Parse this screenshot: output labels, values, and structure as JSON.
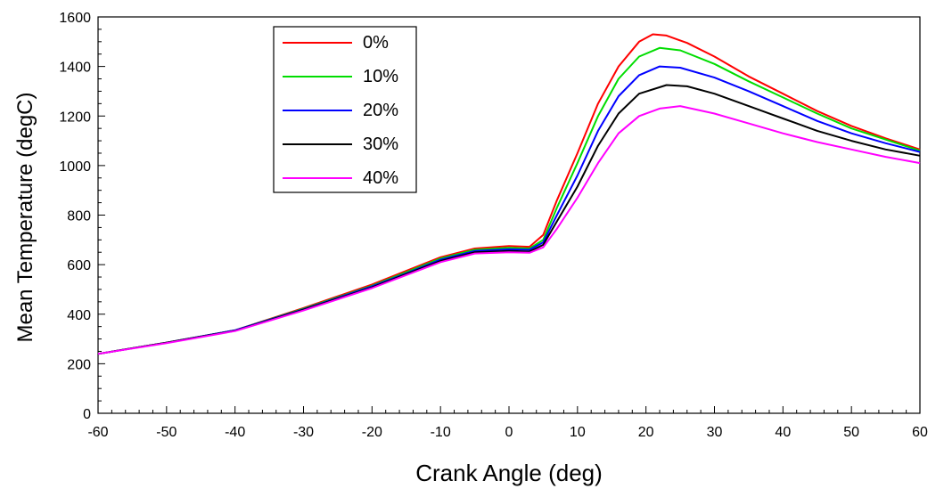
{
  "chart_data": {
    "type": "line",
    "title": "",
    "xlabel": "Crank Angle (deg)",
    "ylabel": "Mean Temperature (degC)",
    "xlim": [
      -60,
      60
    ],
    "ylim": [
      0,
      1600
    ],
    "xticks": [
      -60,
      -50,
      -40,
      -30,
      -20,
      -10,
      0,
      10,
      20,
      30,
      40,
      50,
      60
    ],
    "yticks": [
      0,
      200,
      400,
      600,
      800,
      1000,
      1200,
      1400,
      1600
    ],
    "grid": false,
    "legend_position": "top-left",
    "series": [
      {
        "name": "0%",
        "color": "#ff0000",
        "points": [
          [
            -60,
            240
          ],
          [
            -50,
            285
          ],
          [
            -40,
            335
          ],
          [
            -30,
            425
          ],
          [
            -20,
            520
          ],
          [
            -15,
            575
          ],
          [
            -10,
            630
          ],
          [
            -5,
            665
          ],
          [
            0,
            675
          ],
          [
            3,
            672
          ],
          [
            5,
            720
          ],
          [
            7,
            860
          ],
          [
            10,
            1050
          ],
          [
            13,
            1250
          ],
          [
            16,
            1400
          ],
          [
            19,
            1500
          ],
          [
            21,
            1530
          ],
          [
            23,
            1525
          ],
          [
            26,
            1495
          ],
          [
            30,
            1440
          ],
          [
            35,
            1360
          ],
          [
            40,
            1290
          ],
          [
            45,
            1220
          ],
          [
            50,
            1160
          ],
          [
            55,
            1110
          ],
          [
            60,
            1065
          ]
        ]
      },
      {
        "name": "10%",
        "color": "#00dd00",
        "points": [
          [
            -60,
            240
          ],
          [
            -50,
            285
          ],
          [
            -40,
            335
          ],
          [
            -30,
            422
          ],
          [
            -20,
            515
          ],
          [
            -15,
            570
          ],
          [
            -10,
            625
          ],
          [
            -5,
            660
          ],
          [
            0,
            668
          ],
          [
            3,
            665
          ],
          [
            5,
            700
          ],
          [
            7,
            830
          ],
          [
            10,
            1010
          ],
          [
            13,
            1200
          ],
          [
            16,
            1350
          ],
          [
            19,
            1440
          ],
          [
            22,
            1475
          ],
          [
            25,
            1465
          ],
          [
            30,
            1410
          ],
          [
            35,
            1340
          ],
          [
            40,
            1275
          ],
          [
            45,
            1210
          ],
          [
            50,
            1150
          ],
          [
            55,
            1105
          ],
          [
            60,
            1060
          ]
        ]
      },
      {
        "name": "20%",
        "color": "#0000ff",
        "points": [
          [
            -60,
            240
          ],
          [
            -50,
            285
          ],
          [
            -40,
            335
          ],
          [
            -30,
            420
          ],
          [
            -20,
            512
          ],
          [
            -15,
            565
          ],
          [
            -10,
            620
          ],
          [
            -5,
            655
          ],
          [
            0,
            662
          ],
          [
            3,
            660
          ],
          [
            5,
            690
          ],
          [
            7,
            800
          ],
          [
            10,
            960
          ],
          [
            13,
            1140
          ],
          [
            16,
            1280
          ],
          [
            19,
            1365
          ],
          [
            22,
            1400
          ],
          [
            25,
            1395
          ],
          [
            30,
            1355
          ],
          [
            35,
            1300
          ],
          [
            40,
            1240
          ],
          [
            45,
            1180
          ],
          [
            50,
            1130
          ],
          [
            55,
            1090
          ],
          [
            60,
            1055
          ]
        ]
      },
      {
        "name": "30%",
        "color": "#000000",
        "points": [
          [
            -60,
            240
          ],
          [
            -50,
            285
          ],
          [
            -40,
            333
          ],
          [
            -30,
            418
          ],
          [
            -20,
            508
          ],
          [
            -15,
            562
          ],
          [
            -10,
            615
          ],
          [
            -5,
            650
          ],
          [
            0,
            655
          ],
          [
            3,
            653
          ],
          [
            5,
            680
          ],
          [
            7,
            775
          ],
          [
            10,
            915
          ],
          [
            13,
            1080
          ],
          [
            16,
            1210
          ],
          [
            19,
            1290
          ],
          [
            23,
            1325
          ],
          [
            26,
            1320
          ],
          [
            30,
            1290
          ],
          [
            35,
            1240
          ],
          [
            40,
            1190
          ],
          [
            45,
            1140
          ],
          [
            50,
            1100
          ],
          [
            55,
            1065
          ],
          [
            60,
            1040
          ]
        ]
      },
      {
        "name": "40%",
        "color": "#ff00ff",
        "points": [
          [
            -60,
            240
          ],
          [
            -50,
            283
          ],
          [
            -40,
            332
          ],
          [
            -30,
            415
          ],
          [
            -20,
            505
          ],
          [
            -15,
            558
          ],
          [
            -10,
            610
          ],
          [
            -5,
            645
          ],
          [
            0,
            650
          ],
          [
            3,
            648
          ],
          [
            5,
            670
          ],
          [
            7,
            745
          ],
          [
            10,
            870
          ],
          [
            13,
            1010
          ],
          [
            16,
            1130
          ],
          [
            19,
            1200
          ],
          [
            22,
            1230
          ],
          [
            25,
            1240
          ],
          [
            30,
            1210
          ],
          [
            35,
            1170
          ],
          [
            40,
            1130
          ],
          [
            45,
            1095
          ],
          [
            50,
            1065
          ],
          [
            55,
            1035
          ],
          [
            60,
            1010
          ]
        ]
      }
    ]
  }
}
